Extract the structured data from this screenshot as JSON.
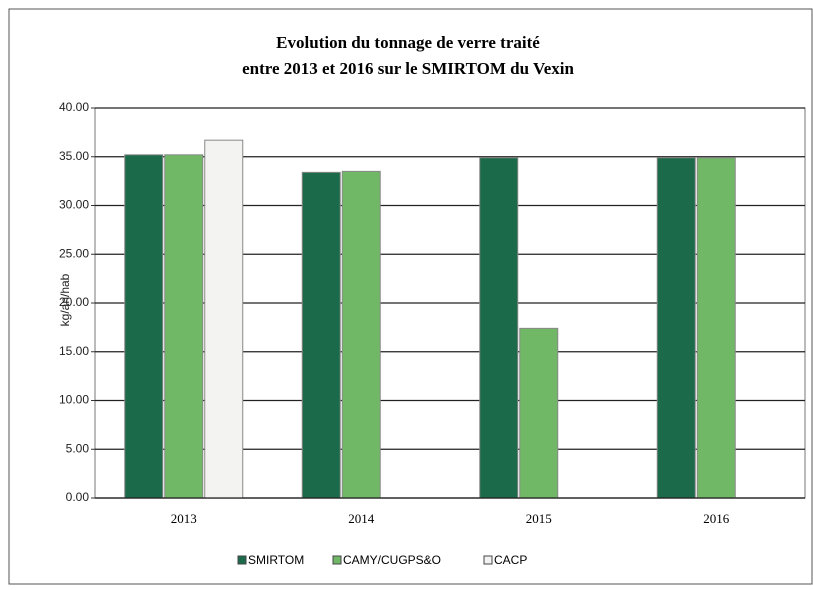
{
  "chart_data": {
    "type": "bar",
    "title": [
      "Evolution du tonnage de verre traité",
      "entre 2013 et 2016 sur le SMIRTOM du Vexin"
    ],
    "y_label": "kg/an/hab",
    "categories": [
      "2013",
      "2014",
      "2015",
      "2016"
    ],
    "series": [
      {
        "name": "SMIRTOM",
        "color": "#1b6b4b",
        "values": [
          35.2,
          33.4,
          34.9,
          34.9
        ]
      },
      {
        "name": "CAMY/CUGPS&O",
        "color": "#70b866",
        "values": [
          35.2,
          33.5,
          17.4,
          34.9
        ]
      },
      {
        "name": "CACP",
        "color": "#f3f4f1",
        "values": [
          36.7,
          null,
          null,
          null
        ]
      }
    ],
    "ylim": [
      0,
      40
    ],
    "yticks": [
      {
        "value": 0,
        "label": "0.00"
      },
      {
        "value": 5,
        "label": "5.00"
      },
      {
        "value": 10,
        "label": "10.00"
      },
      {
        "value": 15,
        "label": "15.00"
      },
      {
        "value": 20,
        "label": "20.00"
      },
      {
        "value": 25,
        "label": "25.00"
      },
      {
        "value": 30,
        "label": "30.00"
      },
      {
        "value": 35,
        "label": "35.00"
      },
      {
        "value": 40,
        "label": "40.00"
      }
    ],
    "grid": true,
    "legend": "bottom"
  }
}
